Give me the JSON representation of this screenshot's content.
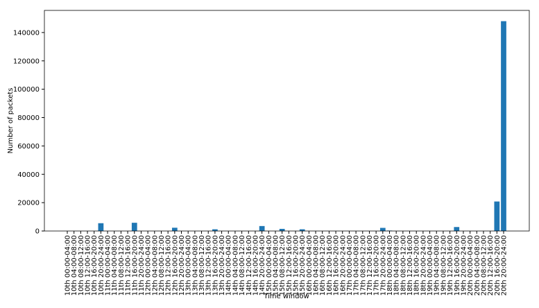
{
  "chart_data": {
    "type": "bar",
    "x_label": "Time window",
    "y_label": "Number of packets",
    "categories": [
      "10th 00:00-04:00",
      "10th 04:00-08:00",
      "10th 08:00-12:00",
      "10th 12:00-16:00",
      "10th 16:00-20:00",
      "10th 20:00-24:00",
      "11th 00:00-04:00",
      "11th 04:00-08:00",
      "11th 08:00-12:00",
      "11th 12:00-16:00",
      "11th 16:00-20:00",
      "11th 20:00-24:00",
      "12th 00:00-04:00",
      "12th 04:00-08:00",
      "12th 08:00-12:00",
      "12th 12:00-16:00",
      "12th 16:00-20:00",
      "12th 20:00-24:00",
      "13th 00:00-04:00",
      "13th 04:00-08:00",
      "13th 08:00-12:00",
      "13th 12:00-16:00",
      "13th 16:00-20:00",
      "13th 20:00-24:00",
      "14th 00:00-04:00",
      "14th 04:00-08:00",
      "14th 08:00-12:00",
      "14th 12:00-16:00",
      "14th 16:00-20:00",
      "14th 20:00-24:00",
      "15th 00:00-04:00",
      "15th 04:00-08:00",
      "15th 08:00-12:00",
      "15th 12:00-16:00",
      "15th 16:00-20:00",
      "15th 20:00-24:00",
      "16th 00:00-04:00",
      "16th 04:00-08:00",
      "16th 08:00-12:00",
      "16th 12:00-16:00",
      "16th 16:00-20:00",
      "16th 20:00-24:00",
      "17th 00:00-04:00",
      "17th 04:00-08:00",
      "17th 08:00-12:00",
      "17th 12:00-16:00",
      "17th 16:00-20:00",
      "17th 20:00-24:00",
      "18th 00:00-04:00",
      "18th 04:00-08:00",
      "18th 08:00-12:00",
      "18th 12:00-16:00",
      "18th 16:00-20:00",
      "18th 20:00-24:00",
      "19th 00:00-04:00",
      "19th 04:00-08:00",
      "19th 08:00-12:00",
      "19th 12:00-16:00",
      "19th 16:00-20:00",
      "19th 20:00-24:00",
      "20th 00:00-04:00",
      "20th 04:00-08:00",
      "20th 08:00-12:00",
      "20th 12:00-16:00",
      "20th 16:00-20:00",
      "20th 20:00-24:00"
    ],
    "values": [
      0,
      0,
      0,
      0,
      0,
      5500,
      0,
      0,
      0,
      0,
      5800,
      0,
      0,
      0,
      0,
      0,
      2300,
      0,
      0,
      0,
      0,
      0,
      1200,
      0,
      0,
      0,
      0,
      0,
      0,
      3500,
      0,
      0,
      1500,
      0,
      0,
      1200,
      0,
      0,
      0,
      0,
      0,
      0,
      0,
      0,
      0,
      0,
      0,
      2200,
      300,
      0,
      0,
      0,
      0,
      0,
      0,
      0,
      0,
      0,
      2800,
      0,
      0,
      0,
      0,
      0,
      20800,
      148000
    ],
    "color": "#1f77b4",
    "ylim": [
      0,
      155600
    ],
    "yticks": [
      0,
      20000,
      40000,
      60000,
      80000,
      100000,
      120000,
      140000
    ],
    "grid": false
  }
}
